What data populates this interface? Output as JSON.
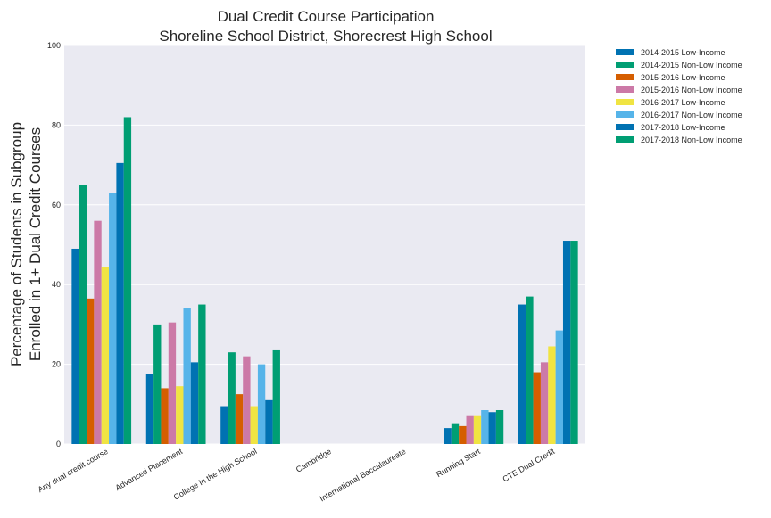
{
  "chart_data": {
    "type": "bar",
    "title": [
      "Dual Credit Course Participation",
      "Shoreline School District, Shorecrest High School"
    ],
    "ylabel": [
      "Percentage of Students in Subgroup",
      "Enrolled in 1+ Dual Credit Courses"
    ],
    "xlabel": "",
    "ylim": [
      0,
      100
    ],
    "yticks": [
      0,
      20,
      40,
      60,
      80,
      100
    ],
    "grid": true,
    "legend_position": "outside-top-right",
    "categories": [
      "Any dual credit course",
      "Advanced Placement",
      "College in the High School",
      "Cambridge",
      "International Baccalaureate",
      "Running Start",
      "CTE Dual Credit"
    ],
    "series": [
      {
        "name": "2014-2015 Low-Income",
        "color": "#0072B2",
        "values": [
          49,
          17.5,
          9.5,
          0,
          0,
          4,
          35
        ]
      },
      {
        "name": "2014-2015 Non-Low Income",
        "color": "#009E73",
        "values": [
          65,
          30,
          23,
          0,
          0,
          5,
          37
        ]
      },
      {
        "name": "2015-2016 Low-Income",
        "color": "#D55E00",
        "values": [
          36.5,
          14,
          12.5,
          0,
          0,
          4.5,
          18
        ]
      },
      {
        "name": "2015-2016 Non-Low Income",
        "color": "#CC79A7",
        "values": [
          56,
          30.5,
          22,
          0,
          0,
          7,
          20.5
        ]
      },
      {
        "name": "2016-2017 Low-Income",
        "color": "#F0E442",
        "values": [
          44.5,
          14.5,
          9.5,
          0,
          0,
          7,
          24.5
        ]
      },
      {
        "name": "2016-2017 Non-Low Income",
        "color": "#56B4E9",
        "values": [
          63,
          34,
          20,
          0,
          0,
          8.5,
          28.5
        ]
      },
      {
        "name": "2017-2018 Low-Income",
        "color": "#0072B2",
        "values": [
          70.5,
          20.5,
          11,
          0,
          0,
          8,
          51
        ]
      },
      {
        "name": "2017-2018 Non-Low Income",
        "color": "#009E73",
        "values": [
          82,
          35,
          23.5,
          0,
          0,
          8.5,
          51
        ]
      }
    ]
  }
}
